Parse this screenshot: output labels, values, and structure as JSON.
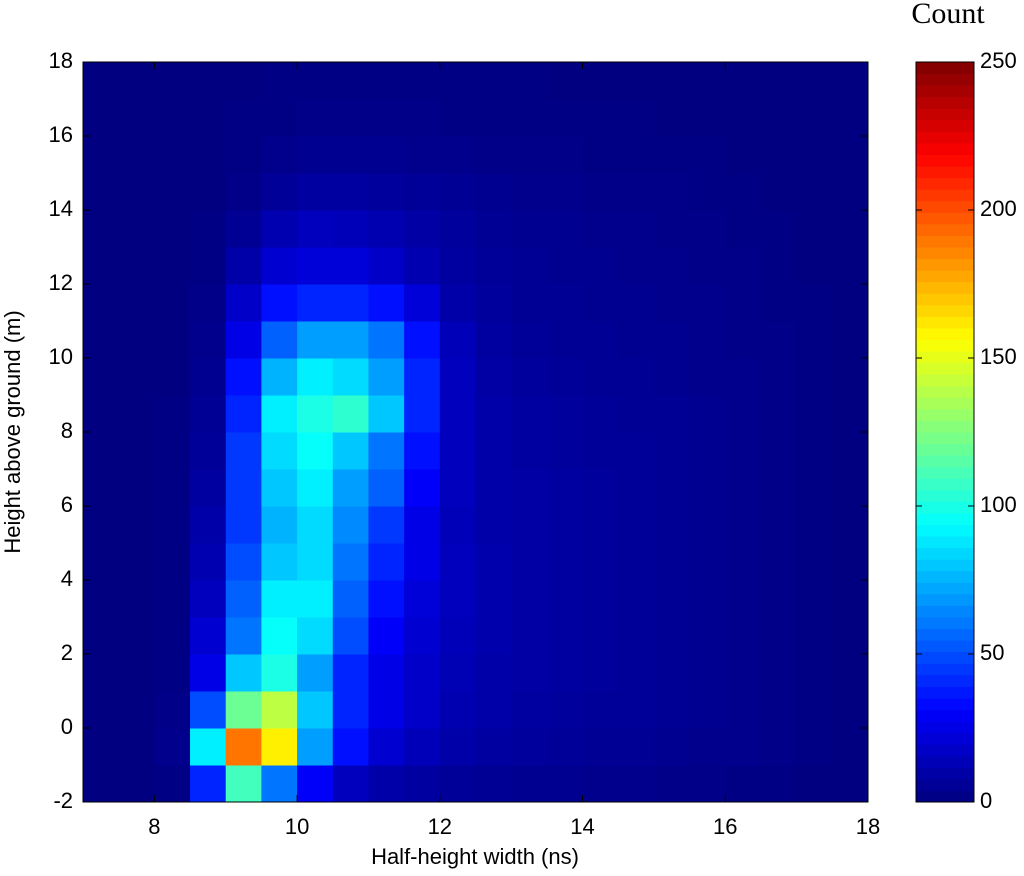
{
  "chart_data": {
    "type": "heatmap",
    "xlabel": "Half-height width (ns)",
    "ylabel": "Height above ground (m)",
    "colorbar_label": "Count",
    "colormap": "jet",
    "x_edges": [
      7,
      7.5,
      8,
      8.5,
      9,
      9.5,
      10,
      10.5,
      11,
      11.5,
      12,
      12.5,
      13,
      13.5,
      14,
      14.5,
      15,
      15.5,
      16,
      16.5,
      17,
      17.5,
      18
    ],
    "y_edges": [
      -2,
      -1,
      0,
      1,
      2,
      3,
      4,
      5,
      6,
      7,
      8,
      9,
      10,
      11,
      12,
      13,
      14,
      15,
      16,
      17,
      18
    ],
    "values": [
      [
        0,
        0,
        1,
        40,
        110,
        60,
        30,
        15,
        10,
        8,
        6,
        5,
        4,
        4,
        3,
        3,
        2,
        2,
        1,
        1,
        0,
        0
      ],
      [
        0,
        0,
        3,
        90,
        190,
        160,
        70,
        35,
        20,
        14,
        10,
        8,
        7,
        6,
        5,
        5,
        4,
        3,
        3,
        2,
        1,
        0
      ],
      [
        0,
        0,
        2,
        50,
        120,
        140,
        80,
        40,
        25,
        18,
        12,
        10,
        8,
        7,
        6,
        6,
        5,
        4,
        3,
        2,
        1,
        0
      ],
      [
        0,
        0,
        1,
        25,
        80,
        100,
        70,
        40,
        25,
        18,
        13,
        10,
        9,
        8,
        7,
        6,
        5,
        4,
        3,
        2,
        1,
        0
      ],
      [
        0,
        0,
        1,
        20,
        60,
        95,
        85,
        50,
        30,
        20,
        14,
        11,
        9,
        8,
        7,
        6,
        5,
        4,
        3,
        2,
        1,
        0
      ],
      [
        0,
        0,
        1,
        15,
        55,
        90,
        90,
        55,
        35,
        22,
        15,
        11,
        9,
        8,
        7,
        6,
        5,
        4,
        3,
        2,
        1,
        0
      ],
      [
        0,
        0,
        1,
        12,
        50,
        80,
        85,
        60,
        40,
        25,
        15,
        11,
        9,
        8,
        7,
        6,
        5,
        4,
        3,
        2,
        1,
        0
      ],
      [
        0,
        0,
        1,
        10,
        45,
        75,
        85,
        65,
        45,
        25,
        14,
        10,
        9,
        8,
        7,
        6,
        5,
        4,
        3,
        2,
        1,
        0
      ],
      [
        0,
        0,
        1,
        8,
        45,
        80,
        90,
        70,
        55,
        30,
        15,
        10,
        9,
        8,
        7,
        6,
        5,
        4,
        3,
        2,
        1,
        0
      ],
      [
        0,
        0,
        1,
        6,
        45,
        85,
        95,
        80,
        60,
        35,
        15,
        10,
        8,
        7,
        6,
        6,
        5,
        4,
        3,
        2,
        1,
        0
      ],
      [
        0,
        0,
        1,
        5,
        40,
        90,
        100,
        105,
        80,
        40,
        15,
        10,
        8,
        7,
        6,
        5,
        5,
        4,
        3,
        2,
        1,
        0
      ],
      [
        0,
        0,
        0,
        4,
        35,
        75,
        90,
        85,
        70,
        40,
        15,
        9,
        7,
        6,
        5,
        5,
        4,
        3,
        3,
        2,
        1,
        0
      ],
      [
        0,
        0,
        0,
        3,
        25,
        55,
        70,
        70,
        60,
        35,
        14,
        8,
        6,
        5,
        5,
        4,
        4,
        3,
        2,
        2,
        1,
        0
      ],
      [
        0,
        0,
        0,
        2,
        18,
        35,
        40,
        40,
        35,
        22,
        10,
        7,
        5,
        5,
        4,
        4,
        3,
        3,
        2,
        1,
        1,
        0
      ],
      [
        0,
        0,
        0,
        1,
        10,
        20,
        22,
        22,
        18,
        12,
        8,
        6,
        5,
        4,
        4,
        3,
        3,
        2,
        2,
        1,
        0,
        0
      ],
      [
        0,
        0,
        0,
        1,
        5,
        12,
        15,
        14,
        12,
        9,
        7,
        5,
        4,
        4,
        3,
        3,
        2,
        2,
        1,
        1,
        0,
        0
      ],
      [
        0,
        0,
        0,
        0,
        2,
        6,
        8,
        8,
        7,
        6,
        5,
        4,
        3,
        3,
        2,
        2,
        2,
        1,
        1,
        0,
        0,
        0
      ],
      [
        0,
        0,
        0,
        0,
        1,
        3,
        4,
        4,
        4,
        3,
        3,
        2,
        2,
        2,
        1,
        1,
        1,
        1,
        0,
        0,
        0,
        0
      ],
      [
        0,
        0,
        0,
        0,
        1,
        1,
        2,
        2,
        2,
        2,
        1,
        1,
        1,
        1,
        1,
        1,
        0,
        0,
        0,
        0,
        0,
        0
      ],
      [
        0,
        0,
        0,
        0,
        0,
        1,
        1,
        1,
        1,
        1,
        1,
        1,
        1,
        0,
        0,
        0,
        0,
        0,
        0,
        0,
        0,
        0
      ]
    ],
    "xlim": [
      7,
      18
    ],
    "ylim": [
      -2,
      18
    ],
    "xticks": [
      8,
      10,
      12,
      14,
      16,
      18
    ],
    "yticks": [
      -2,
      0,
      2,
      4,
      6,
      8,
      10,
      12,
      14,
      16,
      18
    ],
    "clim": [
      0,
      250
    ],
    "cticks": [
      0,
      50,
      100,
      150,
      200,
      250
    ]
  }
}
